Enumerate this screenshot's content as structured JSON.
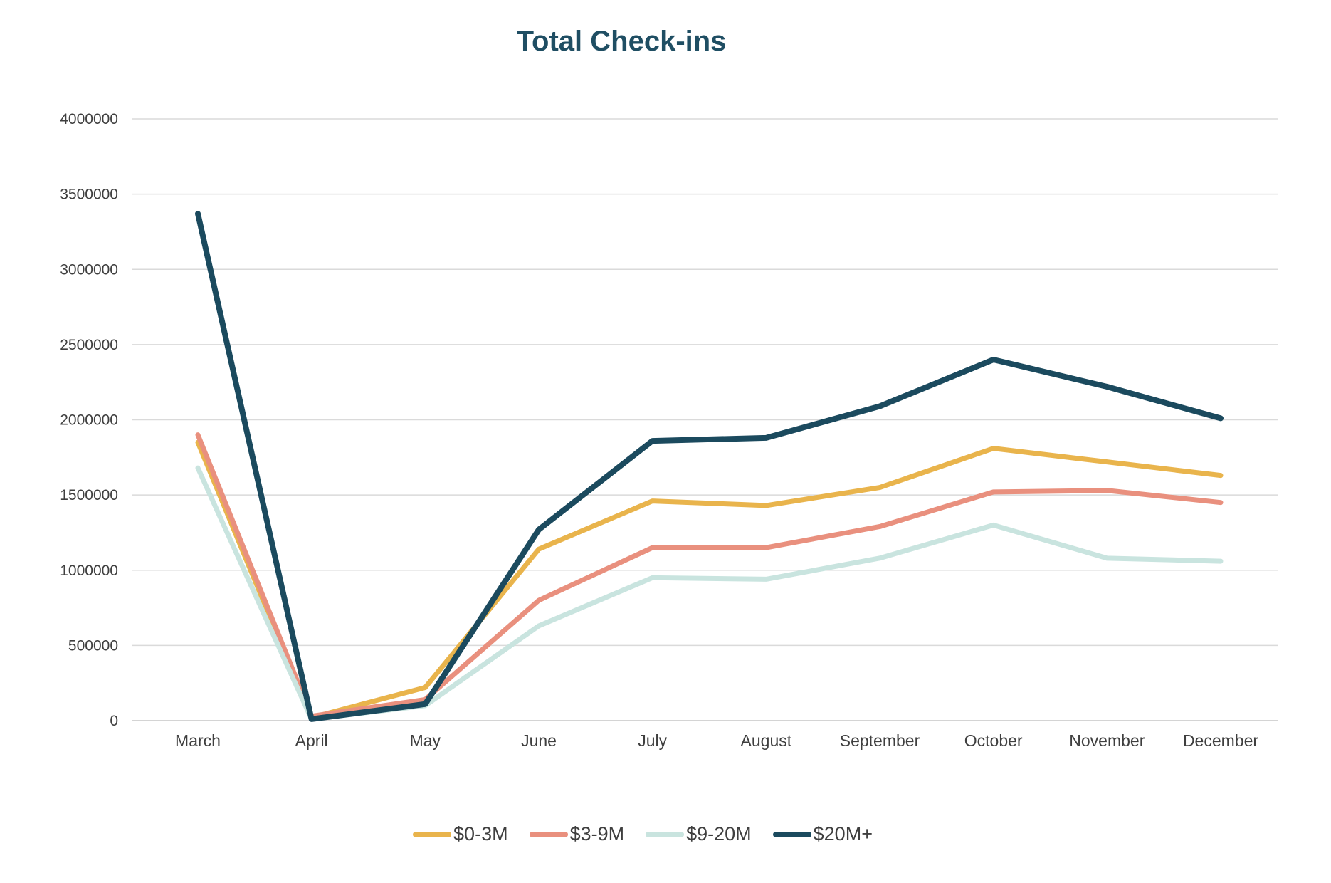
{
  "title": "Total Check-ins",
  "colors": {
    "title": "#1F4E63",
    "axis_text": "#3F3F3F",
    "gridline": "#DADADA",
    "axis_line": "#C6C6C6",
    "background": "#FFFFFF"
  },
  "chart_data": {
    "type": "line",
    "title": "Total Check-ins",
    "categories": [
      "March",
      "April",
      "May",
      "June",
      "July",
      "August",
      "September",
      "October",
      "November",
      "December"
    ],
    "series": [
      {
        "name": "$0-3M",
        "color": "#E9B44C",
        "values": [
          1850000,
          20000,
          220000,
          1140000,
          1460000,
          1430000,
          1550000,
          1810000,
          1720000,
          1630000
        ]
      },
      {
        "name": "$3-9M",
        "color": "#E9907E",
        "values": [
          1900000,
          30000,
          140000,
          800000,
          1150000,
          1150000,
          1290000,
          1520000,
          1530000,
          1450000
        ]
      },
      {
        "name": "$9-20M",
        "color": "#C9E4DF",
        "values": [
          1680000,
          10000,
          100000,
          630000,
          950000,
          940000,
          1080000,
          1300000,
          1080000,
          1060000
        ]
      },
      {
        "name": "$20M+",
        "color": "#1B4A5E",
        "values": [
          3370000,
          10000,
          110000,
          1270000,
          1860000,
          1880000,
          2090000,
          2400000,
          2220000,
          2010000
        ]
      }
    ],
    "ylim": [
      0,
      4000000
    ],
    "ytick_step": 500000,
    "yticks": [
      0,
      500000,
      1000000,
      1500000,
      2000000,
      2500000,
      3000000,
      3500000,
      4000000
    ],
    "grid": "horizontal",
    "legend_position": "bottom"
  }
}
